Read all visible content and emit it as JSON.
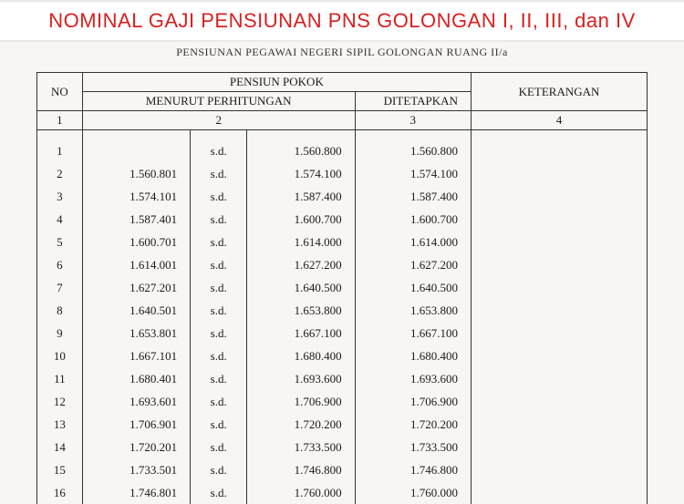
{
  "banner": {
    "title": "NOMINAL GAJI PENSIUNAN PNS GOLONGAN I, II, III, dan IV",
    "title_color": "#d92020",
    "banner_bg": "#ffffff"
  },
  "subtitle": "PENSIUNAN PEGAWAI NEGERI SIPIL GOLONGAN RUANG II/a",
  "table": {
    "headers": {
      "no": "NO",
      "pensiun_pokok": "PENSIUN POKOK",
      "menurut": "MENURUT PERHITUNGAN",
      "ditetapkan": "DITETAPKAN",
      "keterangan": "KETERANGAN"
    },
    "col_nums": {
      "c1": "1",
      "c2": "2",
      "c3": "3",
      "c4": "4"
    },
    "rows": [
      {
        "no": "1",
        "from": "",
        "sd": "s.d.",
        "to": "1.560.800",
        "ditetapkan": "1.560.800",
        "ket": ""
      },
      {
        "no": "2",
        "from": "1.560.801",
        "sd": "s.d.",
        "to": "1.574.100",
        "ditetapkan": "1.574.100",
        "ket": ""
      },
      {
        "no": "3",
        "from": "1.574.101",
        "sd": "s.d.",
        "to": "1.587.400",
        "ditetapkan": "1.587.400",
        "ket": ""
      },
      {
        "no": "4",
        "from": "1.587.401",
        "sd": "s.d.",
        "to": "1.600.700",
        "ditetapkan": "1.600.700",
        "ket": ""
      },
      {
        "no": "5",
        "from": "1.600.701",
        "sd": "s.d.",
        "to": "1.614.000",
        "ditetapkan": "1.614.000",
        "ket": ""
      },
      {
        "no": "6",
        "from": "1.614.001",
        "sd": "s.d.",
        "to": "1.627.200",
        "ditetapkan": "1.627.200",
        "ket": ""
      },
      {
        "no": "7",
        "from": "1.627.201",
        "sd": "s.d.",
        "to": "1.640.500",
        "ditetapkan": "1.640.500",
        "ket": ""
      },
      {
        "no": "8",
        "from": "1.640.501",
        "sd": "s.d.",
        "to": "1.653.800",
        "ditetapkan": "1.653.800",
        "ket": ""
      },
      {
        "no": "9",
        "from": "1.653.801",
        "sd": "s.d.",
        "to": "1.667.100",
        "ditetapkan": "1.667.100",
        "ket": ""
      },
      {
        "no": "10",
        "from": "1.667.101",
        "sd": "s.d.",
        "to": "1.680.400",
        "ditetapkan": "1.680.400",
        "ket": ""
      },
      {
        "no": "11",
        "from": "1.680.401",
        "sd": "s.d.",
        "to": "1.693.600",
        "ditetapkan": "1.693.600",
        "ket": ""
      },
      {
        "no": "12",
        "from": "1.693.601",
        "sd": "s.d.",
        "to": "1.706.900",
        "ditetapkan": "1.706.900",
        "ket": ""
      },
      {
        "no": "13",
        "from": "1.706.901",
        "sd": "s.d.",
        "to": "1.720.200",
        "ditetapkan": "1.720.200",
        "ket": ""
      },
      {
        "no": "14",
        "from": "1.720.201",
        "sd": "s.d.",
        "to": "1.733.500",
        "ditetapkan": "1.733.500",
        "ket": ""
      },
      {
        "no": "15",
        "from": "1.733.501",
        "sd": "s.d.",
        "to": "1.746.800",
        "ditetapkan": "1.746.800",
        "ket": ""
      },
      {
        "no": "16",
        "from": "1.746.801",
        "sd": "s.d.",
        "to": "1.760.000",
        "ditetapkan": "1.760.000",
        "ket": ""
      }
    ]
  },
  "style": {
    "page_bg": "#f8f6f2",
    "border_color": "#333333",
    "font_family_body": "Times New Roman",
    "font_family_title": "Arial",
    "font_size_body": 13,
    "font_size_title": 22,
    "font_size_subtitle": 12
  }
}
